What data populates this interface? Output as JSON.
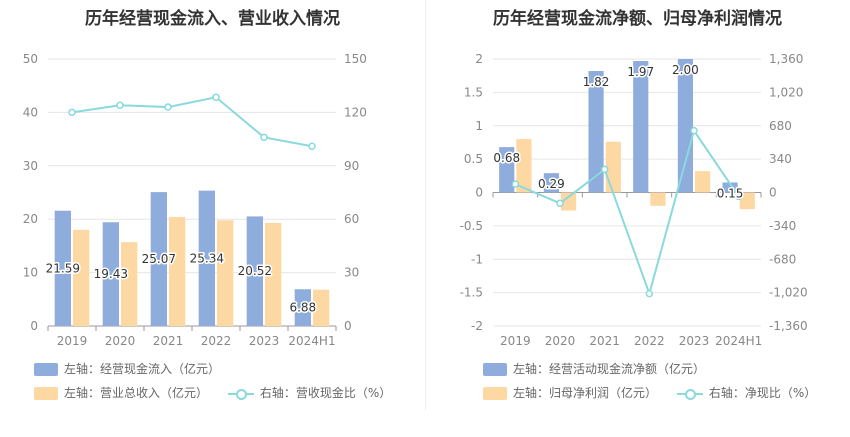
{
  "colors": {
    "bar_primary": "#8eacdc",
    "bar_secondary": "#fed8a2",
    "line": "#8ad9dd",
    "grid": "#e6e6e6",
    "axis_text": "#888888"
  },
  "chart_data": [
    {
      "type": "bar",
      "title": "历年经营现金流入、营业收入情况",
      "categories": [
        "2019",
        "2020",
        "2021",
        "2022",
        "2023",
        "2024H1"
      ],
      "left_axis": {
        "ylim": [
          0,
          50
        ],
        "ticks": [
          "0",
          "10",
          "20",
          "30",
          "40",
          "50"
        ]
      },
      "right_axis": {
        "ylim": [
          0,
          150
        ],
        "ticks": [
          "0",
          "30",
          "60",
          "90",
          "120",
          "150"
        ]
      },
      "series": [
        {
          "name": "左轴：经营现金流入（亿元）",
          "kind": "bar",
          "axis": "left",
          "values": [
            21.59,
            19.43,
            25.07,
            25.34,
            20.52,
            6.88
          ],
          "labels": [
            "21.59",
            "19.43",
            "25.07",
            "25.34",
            "20.52",
            "6.88"
          ]
        },
        {
          "name": "左轴：营业总收入（亿元）",
          "kind": "bar",
          "axis": "left",
          "values": [
            18.0,
            15.7,
            20.4,
            19.8,
            19.3,
            6.8
          ]
        },
        {
          "name": "右轴：营收现金比（%）",
          "kind": "line",
          "axis": "right",
          "values": [
            120,
            124,
            123,
            128.5,
            106,
            101
          ]
        }
      ]
    },
    {
      "type": "bar",
      "title": "历年经营现金流净额、归母净利润情况",
      "categories": [
        "2019",
        "2020",
        "2021",
        "2022",
        "2023",
        "2024H1"
      ],
      "left_axis": {
        "ylim": [
          -2,
          2
        ],
        "ticks": [
          "-2",
          "-1.5",
          "-1",
          "-0.5",
          "0",
          "0.5",
          "1",
          "1.5",
          "2"
        ]
      },
      "right_axis": {
        "ylim": [
          -1360,
          1360
        ],
        "ticks": [
          "-1,360",
          "-1,020",
          "-680",
          "-340",
          "0",
          "340",
          "680",
          "1,020",
          "1,360"
        ]
      },
      "series": [
        {
          "name": "左轴：经营活动现金流净额（亿元）",
          "kind": "bar",
          "axis": "left",
          "values": [
            0.68,
            0.29,
            1.82,
            1.97,
            2.0,
            0.15
          ],
          "labels": [
            "0.68",
            "0.29",
            "1.82",
            "1.97",
            "2.00",
            "0.15"
          ]
        },
        {
          "name": "左轴：归母净利润（亿元）",
          "kind": "bar",
          "axis": "left",
          "values": [
            0.8,
            -0.27,
            0.76,
            -0.2,
            0.32,
            -0.25
          ]
        },
        {
          "name": "右轴：净现比（%）",
          "kind": "line",
          "axis": "right",
          "values": [
            85,
            -110,
            235,
            -1030,
            630,
            -40
          ]
        }
      ]
    }
  ]
}
